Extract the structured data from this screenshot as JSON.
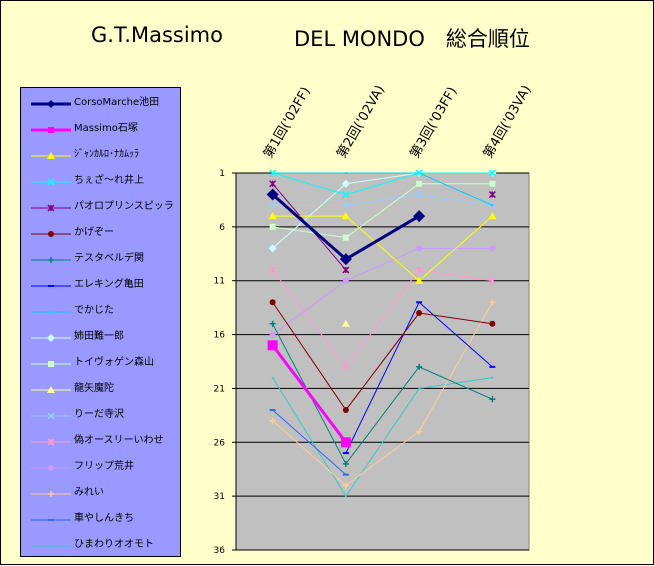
{
  "title_left": "G.T.Massimo",
  "title_right": "DEL MONDO　総合順位",
  "chart_data": {
    "type": "line",
    "title": "G.T.Massimo DEL MONDO 総合順位",
    "categories": [
      "第1回('02FF)",
      "第2回('02VA)",
      "第3回('03FF)",
      "第4回('03VA)"
    ],
    "y_reversed": true,
    "ylim": [
      1,
      36
    ],
    "yticks": [
      1,
      6,
      11,
      16,
      21,
      26,
      31,
      36
    ],
    "grid": true,
    "legend_position": "left",
    "series": [
      {
        "name": "CorsoMarche池田",
        "color": "#000080",
        "marker": "diamond",
        "values": [
          3,
          9,
          5,
          null
        ]
      },
      {
        "name": "Massimo石塚",
        "color": "#ff00ff",
        "marker": "square",
        "values": [
          17,
          26,
          null,
          null
        ]
      },
      {
        "name": "ｼﾞｬﾝｶﾙﾛ･ﾅｶﾑｯﾗ",
        "color": "#ffff00",
        "marker": "triangle",
        "values": [
          5,
          5,
          11,
          5
        ]
      },
      {
        "name": "ちぇざ～れ井上",
        "color": "#00ffff",
        "marker": "x",
        "values": [
          1,
          3,
          1,
          1
        ]
      },
      {
        "name": "パオロプリンスピッラ",
        "color": "#800080",
        "marker": "star",
        "values": [
          2,
          10,
          null,
          3
        ]
      },
      {
        "name": "かげぞー",
        "color": "#800000",
        "marker": "circle",
        "values": [
          13,
          23,
          14,
          15
        ]
      },
      {
        "name": "テスタベルデ関",
        "color": "#008080",
        "marker": "plus",
        "values": [
          15,
          28,
          19,
          22
        ]
      },
      {
        "name": "エレキング亀田",
        "color": "#0000ff",
        "marker": "dash",
        "values": [
          null,
          27,
          13,
          19
        ]
      },
      {
        "name": "でかじた",
        "color": "#00ccff",
        "marker": "none",
        "values": [
          1,
          1,
          1,
          4
        ]
      },
      {
        "name": "姉田難一郎",
        "color": "#ccffff",
        "marker": "diamond",
        "values": [
          8,
          2,
          1,
          1
        ]
      },
      {
        "name": "トイヴォゲン森山",
        "color": "#ccffcc",
        "marker": "square",
        "values": [
          6,
          7,
          2,
          2
        ]
      },
      {
        "name": "龍矢魔陀",
        "color": "#ffff99",
        "marker": "triangle",
        "values": [
          null,
          15,
          null,
          null
        ]
      },
      {
        "name": "りーだ寺沢",
        "color": "#99ccff",
        "marker": "x",
        "values": [
          4,
          4,
          3,
          4
        ]
      },
      {
        "name": "偽オースリーいわせ",
        "color": "#ff99cc",
        "marker": "star",
        "values": [
          10,
          19,
          10,
          11
        ]
      },
      {
        "name": "フリップ荒井",
        "color": "#cc99ff",
        "marker": "circle",
        "values": [
          16,
          11,
          8,
          8
        ]
      },
      {
        "name": "みれい",
        "color": "#ffcc99",
        "marker": "plus",
        "values": [
          24,
          30,
          25,
          13
        ]
      },
      {
        "name": "車やしんきち",
        "color": "#3366ff",
        "marker": "dash",
        "values": [
          23,
          29,
          null,
          null
        ]
      },
      {
        "name": "ひまわりオオモト",
        "color": "#33cccc",
        "marker": "none",
        "values": [
          20,
          31,
          21,
          20
        ]
      }
    ]
  }
}
